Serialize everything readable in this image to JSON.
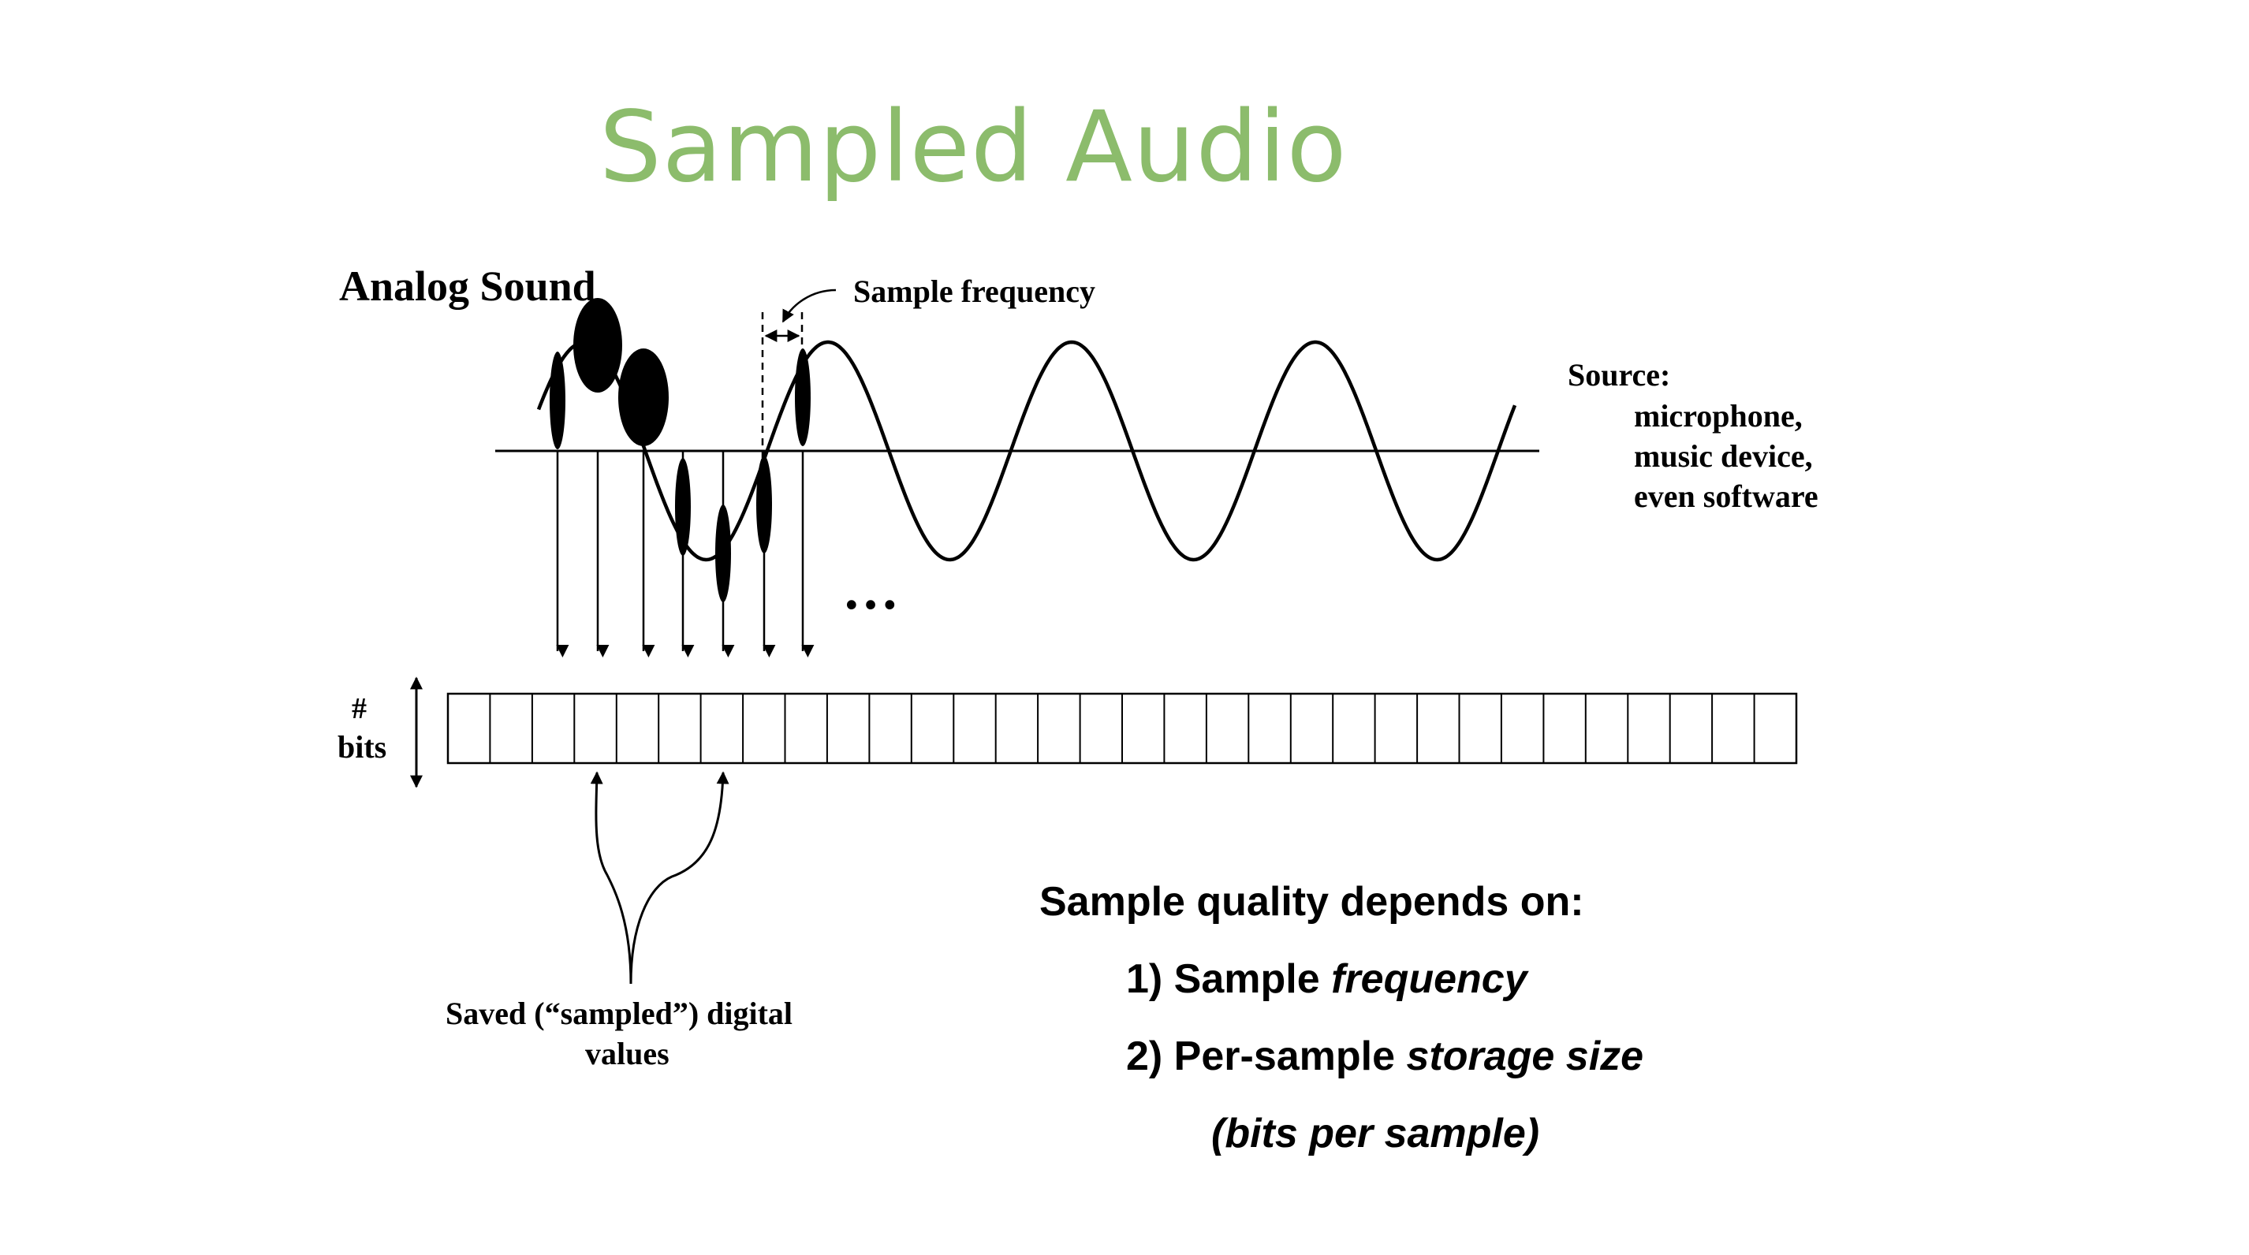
{
  "slide": {
    "title": "Sampled Audio"
  },
  "diagram": {
    "analog_label": "Analog Sound",
    "sample_frequency_label": "Sample frequency",
    "ellipsis": "…",
    "source": {
      "heading": "Source:",
      "lines": [
        "microphone,",
        "music device,",
        "even software"
      ]
    },
    "bits_label_line1": "#",
    "bits_label_line2": "bits",
    "saved_values_line1": "Saved (“sampled”) digital",
    "saved_values_line2": "values",
    "register_cell_count": 32
  },
  "quality": {
    "heading": "Sample quality depends on:",
    "item1_prefix": "1) Sample ",
    "item1_emphasis": "frequency",
    "item2_prefix": "2) Per-sample ",
    "item2_emphasis": "storage size",
    "item3": "(bits per sample)"
  }
}
